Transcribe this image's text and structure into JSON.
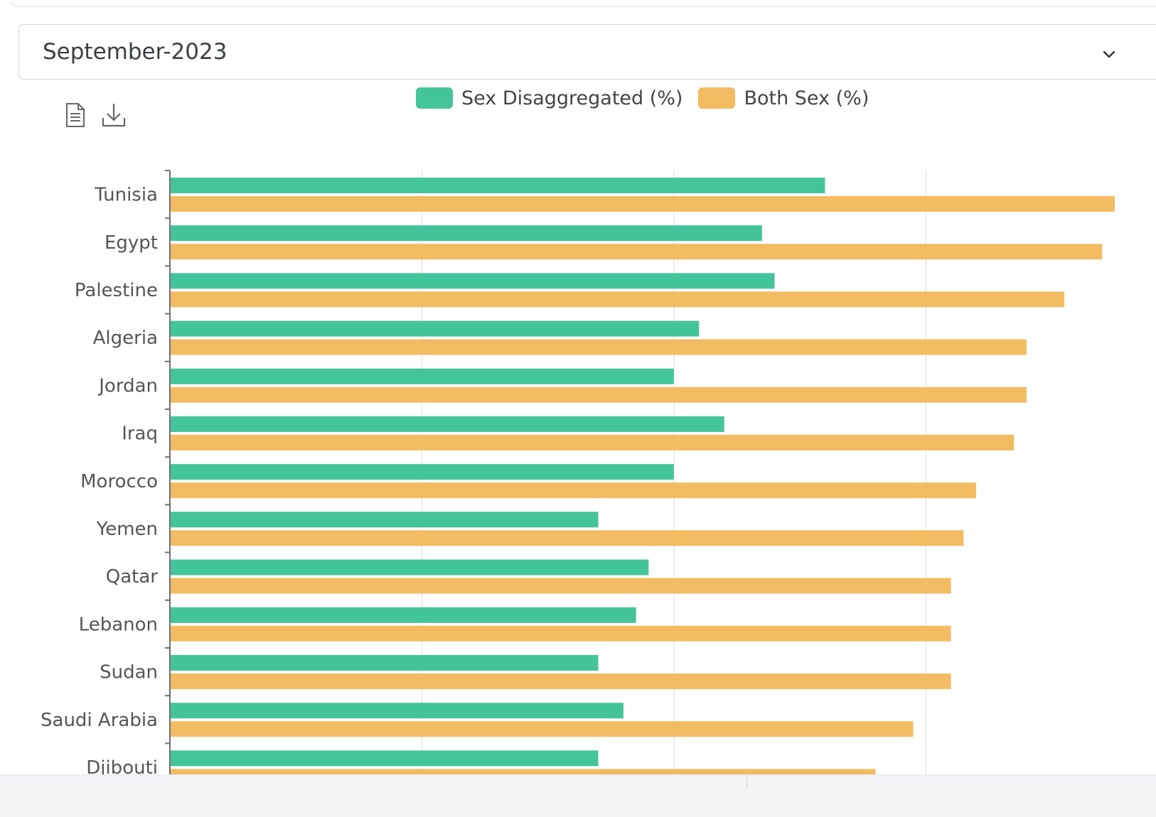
{
  "period_select": {
    "value": "September-2023",
    "chevron_icon": "chevron-down-icon"
  },
  "toolbar": {
    "view_data_icon": "document-icon",
    "download_icon": "download-icon"
  },
  "legend": [
    {
      "label": "Sex Disaggregated (%)",
      "color": "#44c49a"
    },
    {
      "label": "Both Sex (%)",
      "color": "#f3bc62"
    }
  ],
  "chart_data": {
    "type": "bar",
    "orientation": "horizontal",
    "categories": [
      "Tunisia",
      "Egypt",
      "Palestine",
      "Algeria",
      "Jordan",
      "Iraq",
      "Morocco",
      "Yemen",
      "Qatar",
      "Lebanon",
      "Sudan",
      "Saudi Arabia",
      "Djibouti"
    ],
    "series": [
      {
        "name": "Sex Disaggregated (%)",
        "color": "#44c49a",
        "values": [
          52,
          47,
          48,
          42,
          40,
          44,
          40,
          34,
          38,
          37,
          34,
          36,
          34
        ]
      },
      {
        "name": "Both Sex (%)",
        "color": "#f3bc62",
        "values": [
          75,
          74,
          71,
          68,
          68,
          67,
          64,
          63,
          62,
          62,
          62,
          59,
          56
        ]
      }
    ],
    "xlim": [
      0,
      80
    ],
    "grid": true,
    "legend_position": "top"
  }
}
